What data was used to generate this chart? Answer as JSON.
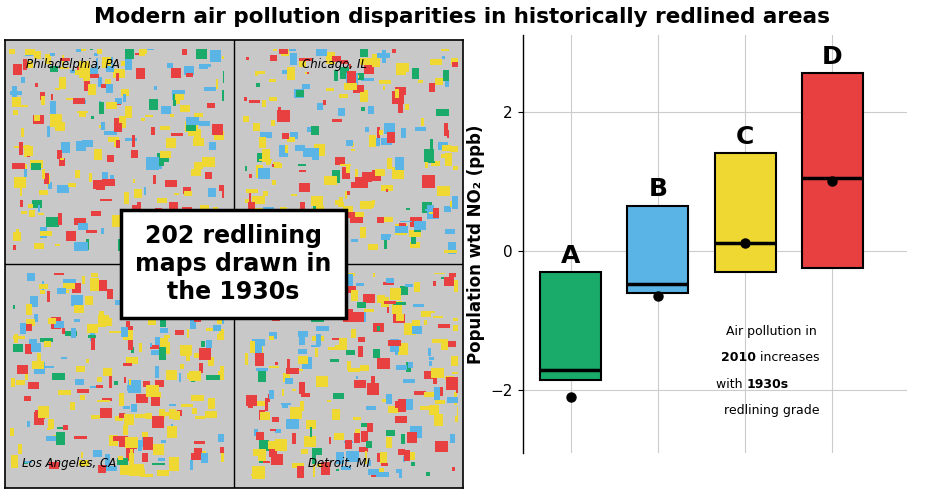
{
  "title": "Modern air pollution disparities in historically redlined areas",
  "title_fontsize": 15.5,
  "ylabel": "Population wtd NO₂ (ppb)",
  "ylabel_fontsize": 12,
  "boxes": [
    {
      "label": "A",
      "color": "#1aaa6a",
      "q1": -1.85,
      "median": -1.7,
      "q3": -0.3,
      "mean": -2.1,
      "x": 1
    },
    {
      "label": "B",
      "color": "#5ab4e5",
      "q1": -0.6,
      "median": -0.48,
      "q3": 0.65,
      "mean": -0.65,
      "x": 2
    },
    {
      "label": "C",
      "color": "#f0d832",
      "q1": -0.3,
      "median": 0.12,
      "q3": 1.4,
      "mean": 0.12,
      "x": 3
    },
    {
      "label": "D",
      "color": "#e84040",
      "q1": -0.25,
      "median": 1.05,
      "q3": 2.55,
      "mean": 1.0,
      "x": 4
    }
  ],
  "ylim": [
    -2.9,
    3.1
  ],
  "yticks": [
    -2,
    0,
    2
  ],
  "bg_color": "#ffffff",
  "grid_color": "#cccccc",
  "map_cities": [
    "Philadelphia, PA",
    "Chicago, IL",
    "Los Angeles, CA",
    "Detroit, MI"
  ],
  "box_text": "202 redlining\nmaps drawn in\nthe 1930s",
  "map_bg": "#c8c8c8",
  "patch_colors": [
    "#1aaa6a",
    "#5ab4e5",
    "#f0d832",
    "#e84040"
  ],
  "annotation_lines": [
    "Air pollution in",
    "‐2010’ increases",
    "with ‐1930s’",
    "redlining grade"
  ]
}
